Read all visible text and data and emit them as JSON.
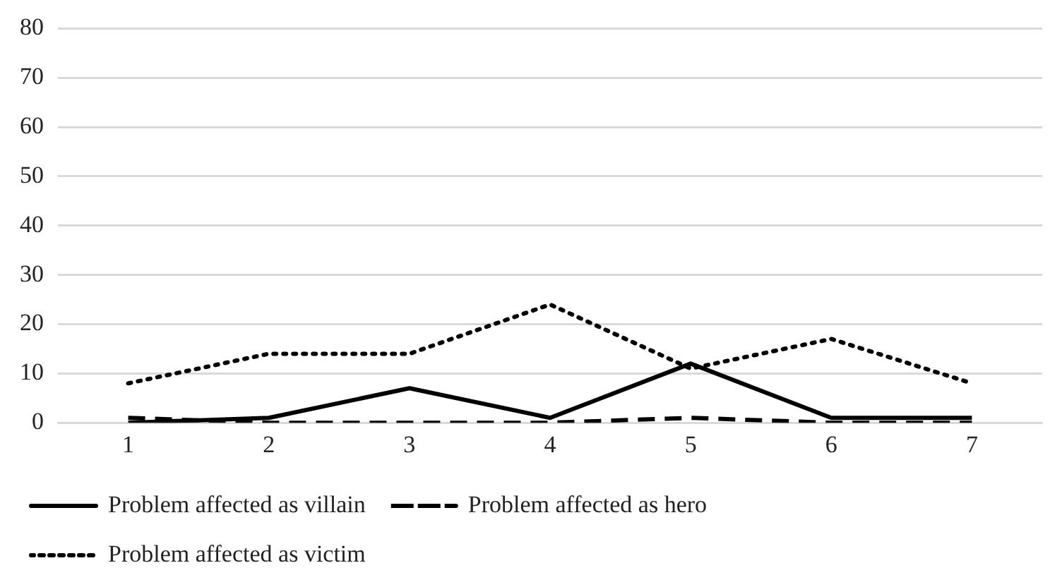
{
  "chart_data": {
    "type": "line",
    "categories": [
      "1",
      "2",
      "3",
      "4",
      "5",
      "6",
      "7"
    ],
    "series": [
      {
        "name": "Problem affected as villain",
        "color": "#000000",
        "line_style": "solid",
        "values": [
          0,
          1,
          7,
          1,
          12,
          1,
          1
        ]
      },
      {
        "name": "Problem affected as hero",
        "color": "#000000",
        "line_style": "dashed",
        "values": [
          1,
          0,
          0,
          0,
          1,
          0,
          0
        ]
      },
      {
        "name": "Problem affected as victim",
        "color": "#000000",
        "line_style": "dotted",
        "values": [
          8,
          14,
          14,
          24,
          11,
          17,
          8
        ]
      }
    ],
    "ylim": [
      0,
      80
    ],
    "yticks": [
      0,
      10,
      20,
      30,
      40,
      50,
      60,
      70,
      80
    ],
    "grid": "y",
    "legend": "bottom",
    "marker": "none"
  }
}
